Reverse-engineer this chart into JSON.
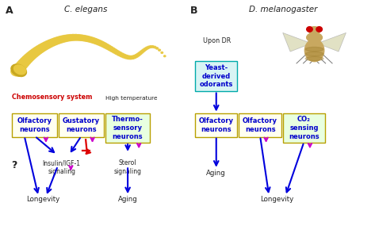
{
  "bg_color": "#ffffff",
  "panel_A_title": "C. elegans",
  "panel_B_title": "D. melanogaster",
  "panel_A_label": "A",
  "panel_B_label": "B",
  "chemosensory_label": "Chemosensory system",
  "high_temp_label": "High temperature",
  "upon_dr_label": "Upon DR",
  "arrow_blue": "#0000dd",
  "arrow_red": "#dd0000",
  "arrow_magenta": "#cc00cc",
  "text_blue": "#0000cc",
  "text_dark": "#222222",
  "worm_color": "#e8c840",
  "worm_dark": "#c8a820",
  "fly_body": "#c8a860",
  "fly_wing": "#d8d8b0",
  "fly_eye": "#cc0000",
  "box_border_yellow": "#b8a000",
  "box_bg_cream": "#fffff0",
  "box_bg_green": "#e8ffe0",
  "box_border_cyan": "#00aaaa",
  "box_bg_cyan": "#d8f4f4",
  "red_label": "#cc0000"
}
